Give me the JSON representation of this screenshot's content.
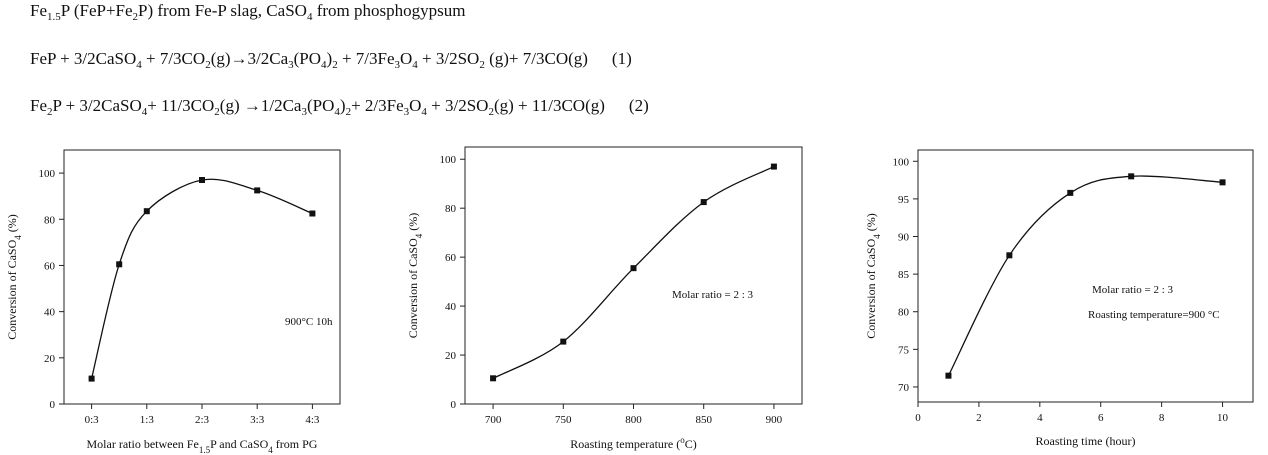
{
  "equations": {
    "line1": {
      "a": "Fe",
      "a_sub": "1.5",
      "b": "P (FeP+Fe",
      "b_sub": "2",
      "c": "P) from Fe-P slag,  CaSO",
      "c_sub": "4",
      "d": " from phosphogypsum"
    },
    "line2": {
      "a": "FeP + 3/2CaSO",
      "a_sub": "4",
      "b": " + 7/3CO",
      "b_sub": "2",
      "c": "(g)→3/2Ca",
      "c_sub": "3",
      "d": "(PO",
      "d_sub": "4",
      "e": ")",
      "e_sub": "2",
      "f": " + 7/3Fe",
      "f_sub": "3",
      "g": "O",
      "g_sub": "4",
      "h": " + 3/2SO",
      "h_sub": "2",
      "i": " (g)+ 7/3CO(g)",
      "num": "(1)"
    },
    "line3": {
      "a": "Fe",
      "a_sub": "2",
      "b": "P + 3/2CaSO",
      "b_sub": "4",
      "c": "+ 11/3CO",
      "c_sub": "2",
      "d": "(g) →1/2Ca",
      "d_sub": "3",
      "e": "(PO",
      "e_sub": "4",
      "f": ")",
      "f_sub": "2",
      "g": "+ 2/3Fe",
      "g_sub": "3",
      "h": "O",
      "h_sub": "4",
      "i": " + 3/2SO",
      "i_sub": "2",
      "j": "(g) + 11/3CO(g)",
      "num": "(2)"
    }
  },
  "chart_data": [
    {
      "type": "line",
      "x": [
        0,
        0.5,
        1,
        2,
        3,
        4
      ],
      "y": [
        11,
        60.5,
        83.5,
        97,
        92.5,
        82.5
      ],
      "xlim": [
        -0.5,
        4.5
      ],
      "ylim": [
        0,
        110
      ],
      "xticks": [
        0,
        1,
        2,
        3,
        4
      ],
      "xtick_labels": [
        "0:3",
        "1:3",
        "2:3",
        "3:3",
        "4:3"
      ],
      "yticks": [
        0,
        20,
        40,
        60,
        80,
        100
      ],
      "xlabel": "Molar ratio between Fe1.5P and CaSO4 from PG",
      "xlabel_parts": [
        "Molar ratio between Fe",
        "1.5",
        "P and CaSO",
        "4",
        " from PG"
      ],
      "ylabel_parts": [
        "Conversion of  CaSO",
        "4",
        "  (%)"
      ],
      "annotations": [
        "900°C 10h"
      ],
      "grid": false
    },
    {
      "type": "line",
      "x": [
        700,
        750,
        800,
        850,
        900
      ],
      "y": [
        10.5,
        25.5,
        55.5,
        82.5,
        97
      ],
      "xlim": [
        680,
        920
      ],
      "ylim": [
        0,
        105
      ],
      "xticks": [
        700,
        750,
        800,
        850,
        900
      ],
      "xtick_labels": [
        "700",
        "750",
        "800",
        "850",
        "900"
      ],
      "yticks": [
        0,
        20,
        40,
        60,
        80,
        100
      ],
      "xlabel": "Roasting temperature (°C)",
      "xlabel_parts": [
        "Roasting temperature  (",
        "o",
        "C)"
      ],
      "ylabel_parts": [
        "Conversion of  CaSO",
        "4",
        "  (%)"
      ],
      "annotations": [
        "Molar ratio = 2 : 3"
      ],
      "grid": false
    },
    {
      "type": "line",
      "x": [
        1,
        3,
        5,
        7,
        10
      ],
      "y": [
        71.5,
        87.5,
        95.8,
        98,
        97.2
      ],
      "xlim": [
        0,
        11
      ],
      "ylim": [
        68,
        101.5
      ],
      "xticks": [
        0,
        2,
        4,
        6,
        8,
        10
      ],
      "xtick_labels": [
        "0",
        "2",
        "4",
        "6",
        "8",
        "10"
      ],
      "yticks": [
        70,
        75,
        80,
        85,
        90,
        95,
        100
      ],
      "xlabel": "Roasting time (hour)",
      "xlabel_parts": [
        "Roasting time  (hour)"
      ],
      "ylabel_parts": [
        "Conversion of  CaSO",
        "4",
        "  (%)"
      ],
      "annotations": [
        "Molar ratio = 2 : 3",
        "Roasting temperature=900 °C"
      ],
      "grid": false
    }
  ]
}
